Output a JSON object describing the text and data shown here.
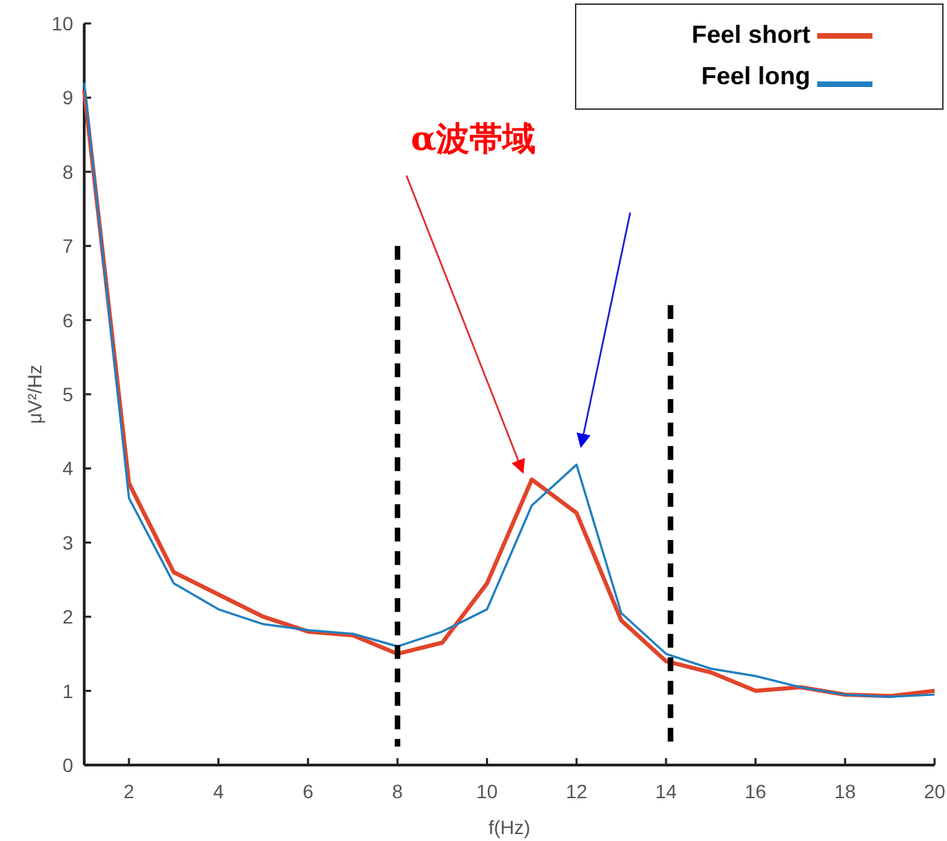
{
  "chart_data": {
    "type": "line",
    "xlabel": "f(Hz)",
    "ylabel": "μV²/Hz",
    "x": [
      1,
      2,
      3,
      4,
      5,
      6,
      7,
      8,
      9,
      10,
      11,
      12,
      13,
      14,
      15,
      16,
      17,
      18,
      19,
      20
    ],
    "series": [
      {
        "name": "Feel short",
        "color": "#e0452a",
        "values": [
          9.1,
          3.8,
          2.6,
          2.3,
          2.0,
          1.8,
          1.75,
          1.5,
          1.65,
          2.45,
          3.85,
          3.4,
          1.95,
          1.4,
          1.25,
          1.0,
          1.05,
          0.95,
          0.93,
          1.0
        ]
      },
      {
        "name": "Feel long",
        "color": "#1f7fc0",
        "values": [
          9.2,
          3.6,
          2.45,
          2.1,
          1.9,
          1.82,
          1.77,
          1.6,
          1.8,
          2.1,
          3.5,
          4.05,
          2.05,
          1.5,
          1.3,
          1.2,
          1.05,
          0.95,
          0.92,
          0.95
        ]
      }
    ],
    "xlim": [
      1,
      20
    ],
    "ylim": [
      0,
      10
    ],
    "xticks": [
      2,
      4,
      6,
      8,
      10,
      12,
      14,
      16,
      18,
      20
    ],
    "yticks": [
      0,
      1,
      2,
      3,
      4,
      5,
      6,
      7,
      8,
      9,
      10
    ],
    "ref_lines": [
      {
        "axis": "x",
        "value": 8,
        "color": "#000000",
        "line_style": "dashed"
      },
      {
        "axis": "x",
        "value": 14.1,
        "color": "#000000",
        "line_style": "dashed"
      }
    ],
    "annotations": [
      {
        "text": "α波帯域",
        "x": 11,
        "y": 3.85
      }
    ],
    "legend": "top right",
    "grid": false,
    "marker": "none",
    "line_style": "solid"
  }
}
